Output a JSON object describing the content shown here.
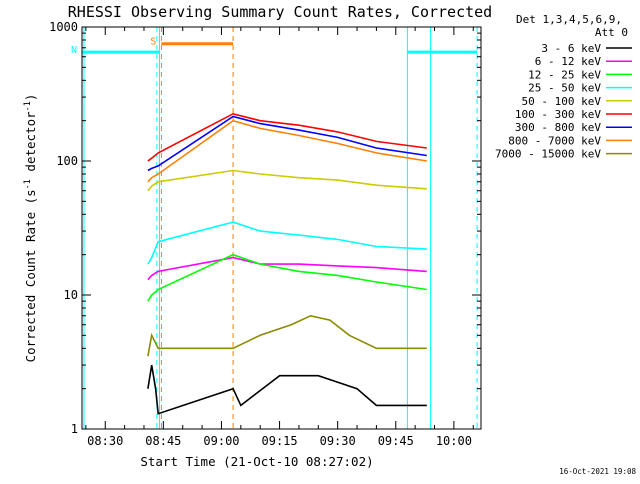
{
  "chart_data": {
    "type": "line",
    "title": "RHESSI Observing Summary Count Rates, Corrected",
    "xlabel": "Start Time (21-Oct-10 08:27:02)",
    "ylabel": "Corrected Count Rate (s-1 detector-1)",
    "ylabel_parts": {
      "pre": "Corrected Count Rate (s",
      "sup1": "-1",
      "mid": " detector",
      "sup2": "-1",
      "post": ")"
    },
    "yscale": "log",
    "ylim": [
      1,
      1000
    ],
    "xlim": [
      "08:24",
      "10:07"
    ],
    "x_ticks": [
      "08:30",
      "08:45",
      "09:00",
      "09:15",
      "09:30",
      "09:45",
      "10:00"
    ],
    "y_ticks": [
      "1",
      "10",
      "100",
      "1000"
    ],
    "footer_timestamp": "16-Oct-2021 19:08",
    "detector_info": [
      "Det 1,3,4,5,6,9,",
      "Att 0"
    ],
    "series": [
      {
        "name": "3 - 6 keV",
        "color": "#000000",
        "points": [
          [
            "08:41:00",
            2.0
          ],
          [
            "08:42:00",
            3.0
          ],
          [
            "08:43:00",
            2.0
          ],
          [
            "08:43:40",
            1.3
          ],
          [
            "09:03:00",
            2.0
          ],
          [
            "09:05:00",
            1.5
          ],
          [
            "09:15:00",
            2.5
          ],
          [
            "09:25:00",
            2.5
          ],
          [
            "09:35:00",
            2.0
          ],
          [
            "09:40:00",
            1.5
          ],
          [
            "09:53:00",
            1.5
          ]
        ]
      },
      {
        "name": "6 - 12 keV",
        "color": "#ff00ff",
        "points": [
          [
            "08:41:00",
            13
          ],
          [
            "08:42:00",
            14
          ],
          [
            "08:43:40",
            15
          ],
          [
            "09:03:00",
            19
          ],
          [
            "09:10:00",
            17
          ],
          [
            "09:20:00",
            17
          ],
          [
            "09:30:00",
            16.5
          ],
          [
            "09:40:00",
            16
          ],
          [
            "09:53:00",
            15
          ]
        ]
      },
      {
        "name": "12 - 25 keV",
        "color": "#00ff00",
        "points": [
          [
            "08:41:00",
            9
          ],
          [
            "08:42:00",
            10
          ],
          [
            "08:43:40",
            11
          ],
          [
            "09:03:00",
            20
          ],
          [
            "09:10:00",
            17
          ],
          [
            "09:20:00",
            15
          ],
          [
            "09:30:00",
            14
          ],
          [
            "09:40:00",
            12.5
          ],
          [
            "09:53:00",
            11
          ]
        ]
      },
      {
        "name": "25 - 50 keV",
        "color": "#00ffff",
        "points": [
          [
            "08:41:00",
            17
          ],
          [
            "08:42:00",
            19
          ],
          [
            "08:43:40",
            25
          ],
          [
            "09:03:00",
            35
          ],
          [
            "09:10:00",
            30
          ],
          [
            "09:20:00",
            28
          ],
          [
            "09:30:00",
            26
          ],
          [
            "09:40:00",
            23
          ],
          [
            "09:53:00",
            22
          ]
        ]
      },
      {
        "name": "50 - 100 keV",
        "color": "#cccc00",
        "points": [
          [
            "08:41:00",
            60
          ],
          [
            "08:42:00",
            65
          ],
          [
            "08:43:40",
            70
          ],
          [
            "09:03:00",
            85
          ],
          [
            "09:10:00",
            80
          ],
          [
            "09:20:00",
            75
          ],
          [
            "09:30:00",
            72
          ],
          [
            "09:40:00",
            66
          ],
          [
            "09:53:00",
            62
          ]
        ]
      },
      {
        "name": "100 - 300 keV",
        "color": "#ff0000",
        "points": [
          [
            "08:41:00",
            100
          ],
          [
            "08:42:00",
            105
          ],
          [
            "08:43:40",
            115
          ],
          [
            "09:03:00",
            225
          ],
          [
            "09:10:00",
            200
          ],
          [
            "09:20:00",
            185
          ],
          [
            "09:30:00",
            165
          ],
          [
            "09:40:00",
            140
          ],
          [
            "09:53:00",
            125
          ]
        ]
      },
      {
        "name": "300 - 800 keV",
        "color": "#0000ff",
        "points": [
          [
            "08:41:00",
            85
          ],
          [
            "08:42:00",
            88
          ],
          [
            "08:43:40",
            92
          ],
          [
            "09:03:00",
            215
          ],
          [
            "09:10:00",
            190
          ],
          [
            "09:20:00",
            170
          ],
          [
            "09:30:00",
            150
          ],
          [
            "09:40:00",
            125
          ],
          [
            "09:53:00",
            110
          ]
        ]
      },
      {
        "name": "800 - 7000 keV",
        "color": "#ff8000",
        "points": [
          [
            "08:41:00",
            70
          ],
          [
            "08:42:00",
            75
          ],
          [
            "08:43:40",
            80
          ],
          [
            "09:03:00",
            200
          ],
          [
            "09:10:00",
            175
          ],
          [
            "09:20:00",
            155
          ],
          [
            "09:30:00",
            135
          ],
          [
            "09:40:00",
            115
          ],
          [
            "09:53:00",
            100
          ]
        ]
      },
      {
        "name": "7000 - 15000 keV",
        "color": "#8b8b00",
        "points": [
          [
            "08:41:00",
            3.5
          ],
          [
            "08:42:00",
            5
          ],
          [
            "08:43:40",
            4
          ],
          [
            "09:03:00",
            4
          ],
          [
            "09:10:00",
            5
          ],
          [
            "09:18:00",
            6
          ],
          [
            "09:23:00",
            7
          ],
          [
            "09:28:00",
            6.5
          ],
          [
            "09:33:00",
            5
          ],
          [
            "09:40:00",
            4
          ],
          [
            "09:53:00",
            4
          ]
        ]
      }
    ],
    "flags": [
      {
        "label": "S",
        "color": "#ff8000",
        "start": "08:44:30",
        "end": "09:03:00",
        "level": 750
      },
      {
        "label": "N",
        "color": "#00ffff",
        "start": "08:24:00",
        "end": "08:44:00",
        "level": 650
      },
      {
        "label": "",
        "color": "#00ffff",
        "start": "09:48:00",
        "end": "10:06:00",
        "level": 650
      }
    ],
    "markers": [
      {
        "color": "#00ffff",
        "style": "solid",
        "time": "08:24:30"
      },
      {
        "color": "#00ffff",
        "style": "dashed",
        "time": "08:43:20"
      },
      {
        "color": "#00ffff",
        "style": "solid",
        "time": "08:44:00"
      },
      {
        "color": "#ff8000",
        "style": "dashed",
        "time": "08:44:30"
      },
      {
        "color": "#ff8000",
        "style": "dashed",
        "time": "09:03:00"
      },
      {
        "color": "#00ffff",
        "style": "solid",
        "time": "09:48:00"
      },
      {
        "color": "#00ffff",
        "style": "solid",
        "time": "09:54:00"
      },
      {
        "color": "#00ffff",
        "style": "dashed",
        "time": "10:06:00"
      }
    ]
  }
}
